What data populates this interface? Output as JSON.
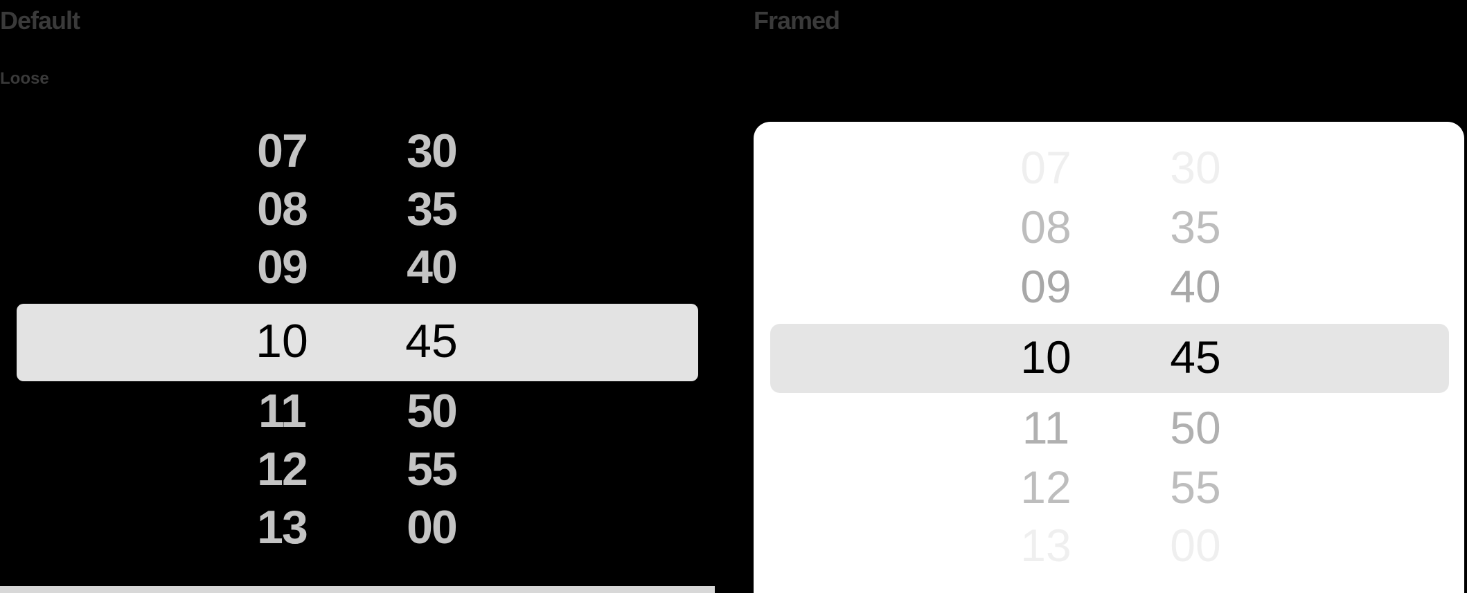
{
  "default_section": {
    "title": "Default",
    "subtitle": "Loose",
    "hours": [
      "07",
      "08",
      "09",
      "10",
      "11",
      "12",
      "13"
    ],
    "minutes": [
      "30",
      "35",
      "40",
      "45",
      "50",
      "55",
      "00"
    ],
    "selected_hour": "10",
    "selected_minute": "45"
  },
  "framed_section": {
    "title": "Framed",
    "hours": [
      "07",
      "08",
      "09",
      "10",
      "11",
      "12",
      "13"
    ],
    "minutes": [
      "30",
      "35",
      "40",
      "45",
      "50",
      "55",
      "00"
    ],
    "selected_hour": "10",
    "selected_minute": "45"
  },
  "colors": {
    "background": "#000000",
    "highlight": "#e3e3e3",
    "frame": "#ffffff",
    "selected_text": "#000000",
    "unselected_text": "#c4c4c4"
  }
}
